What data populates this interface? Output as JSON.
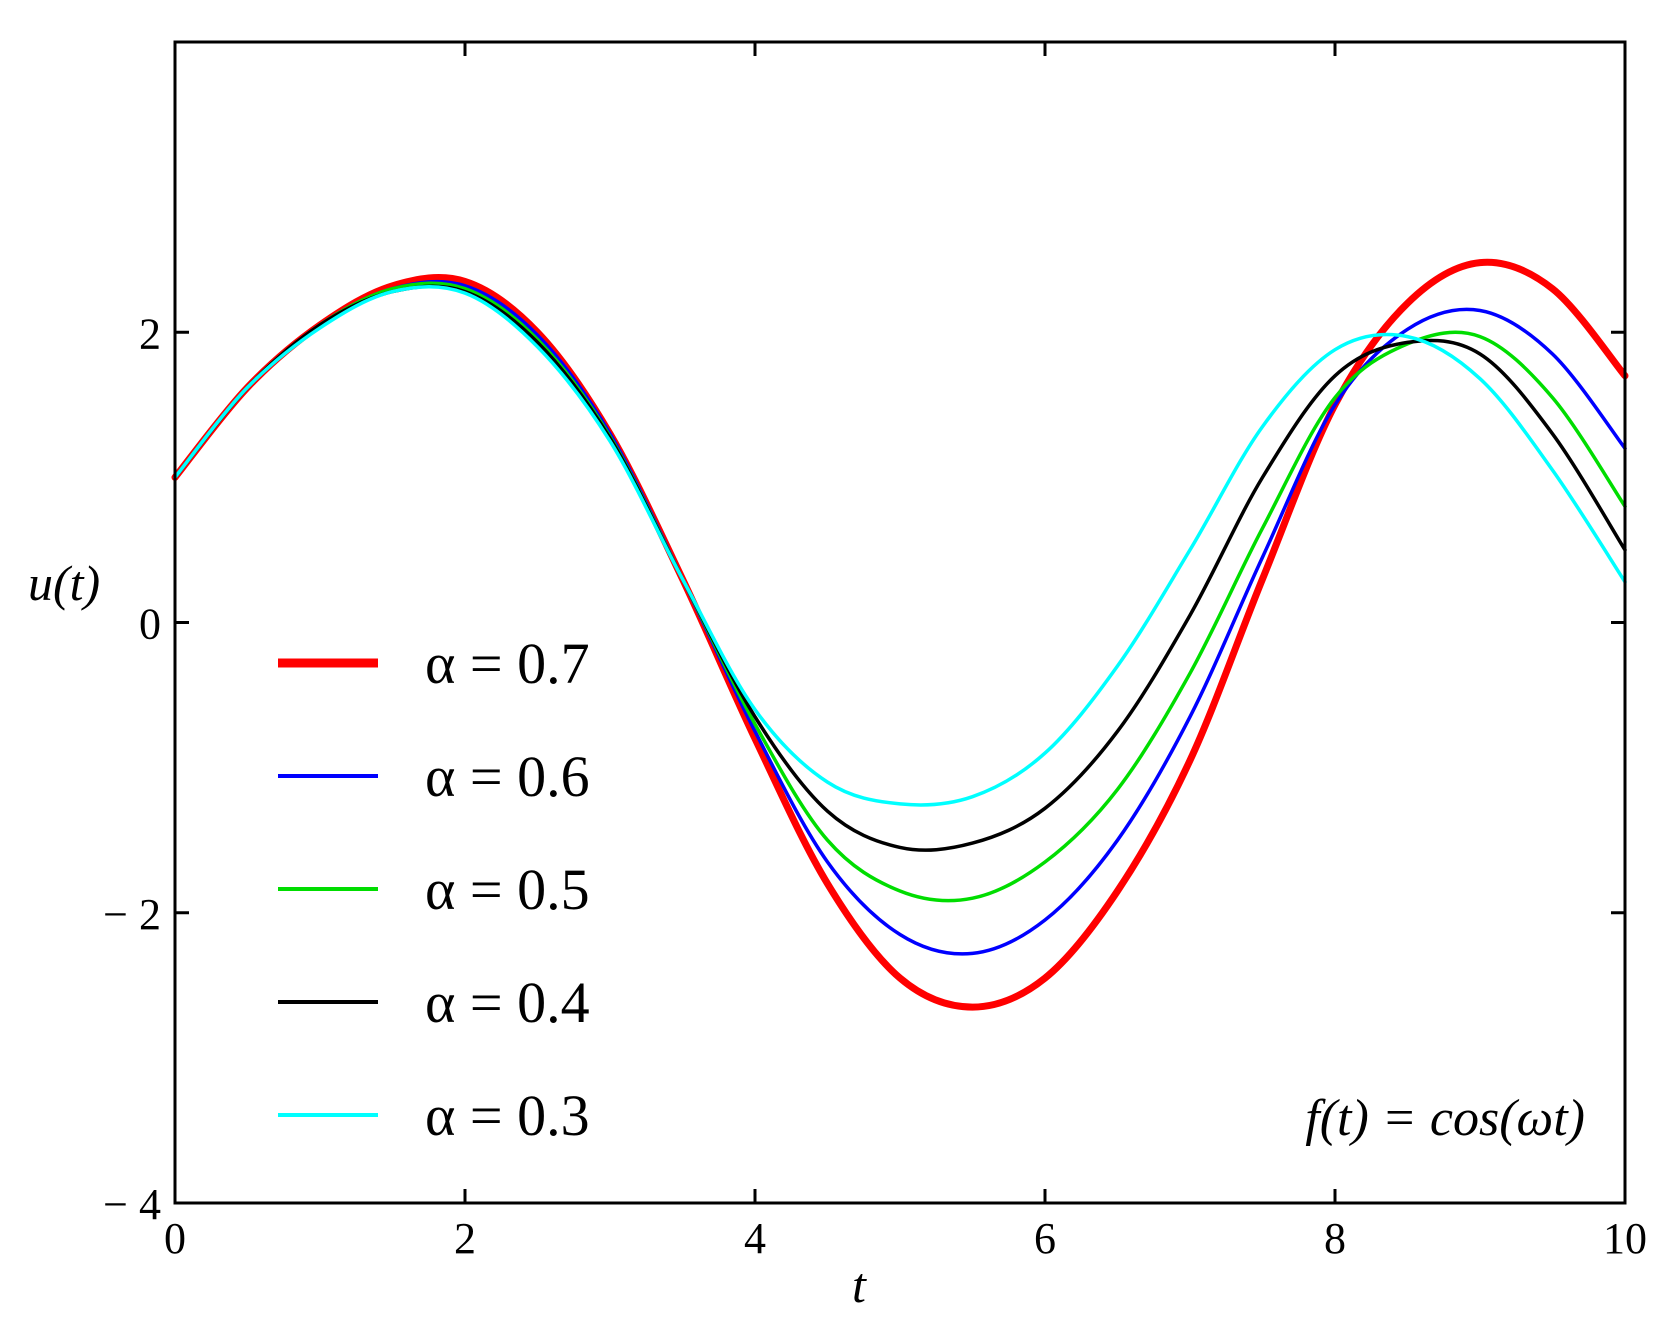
{
  "chart_data": {
    "type": "line",
    "title": "",
    "xlabel": "t",
    "ylabel": "u(t)",
    "xlim": [
      0,
      10
    ],
    "ylim": [
      -4,
      4
    ],
    "x_ticks": [
      0,
      2,
      4,
      6,
      8,
      10
    ],
    "y_ticks": [
      -4,
      -2,
      0,
      2
    ],
    "x_tick_labels": [
      "0",
      "2",
      "4",
      "6",
      "8",
      "10"
    ],
    "y_tick_labels": [
      "− 4",
      "− 2",
      "0",
      "2"
    ],
    "legend_position": "left",
    "annotation": "f(t) = cos(ωt)",
    "x": [
      0,
      0.5,
      1,
      1.5,
      2,
      2.5,
      3,
      3.5,
      4,
      4.5,
      5,
      5.5,
      6,
      6.5,
      7,
      7.5,
      8,
      8.5,
      9,
      9.5,
      10
    ],
    "series": [
      {
        "name": "α = 0.7",
        "color": "#ff0000",
        "width": "thick",
        "values": [
          1.0,
          1.62,
          2.05,
          2.32,
          2.35,
          2.0,
          1.3,
          0.3,
          -0.8,
          -1.8,
          -2.45,
          -2.65,
          -2.45,
          -1.85,
          -0.95,
          0.3,
          1.5,
          2.2,
          2.48,
          2.3,
          1.7
        ]
      },
      {
        "name": "α = 0.6",
        "color": "#0000ff",
        "width": "thin",
        "values": [
          1.0,
          1.62,
          2.05,
          2.3,
          2.32,
          1.98,
          1.3,
          0.3,
          -0.75,
          -1.65,
          -2.15,
          -2.28,
          -2.05,
          -1.5,
          -0.65,
          0.45,
          1.5,
          2.02,
          2.15,
          1.85,
          1.2
        ]
      },
      {
        "name": "α = 0.5",
        "color": "#00dd00",
        "width": "thin",
        "values": [
          1.0,
          1.62,
          2.05,
          2.3,
          2.3,
          1.95,
          1.28,
          0.3,
          -0.7,
          -1.5,
          -1.85,
          -1.9,
          -1.65,
          -1.15,
          -0.35,
          0.65,
          1.55,
          1.92,
          1.97,
          1.55,
          0.8
        ]
      },
      {
        "name": "α = 0.4",
        "color": "#000000",
        "width": "thin",
        "values": [
          1.0,
          1.62,
          2.05,
          2.28,
          2.28,
          1.93,
          1.27,
          0.3,
          -0.65,
          -1.3,
          -1.55,
          -1.52,
          -1.28,
          -0.75,
          0.05,
          1.0,
          1.7,
          1.93,
          1.85,
          1.3,
          0.5
        ]
      },
      {
        "name": "α = 0.3",
        "color": "#00ffff",
        "width": "thin",
        "values": [
          1.0,
          1.62,
          2.03,
          2.28,
          2.27,
          1.9,
          1.25,
          0.3,
          -0.6,
          -1.1,
          -1.25,
          -1.2,
          -0.9,
          -0.3,
          0.5,
          1.35,
          1.88,
          1.97,
          1.68,
          1.05,
          0.28
        ]
      }
    ]
  }
}
